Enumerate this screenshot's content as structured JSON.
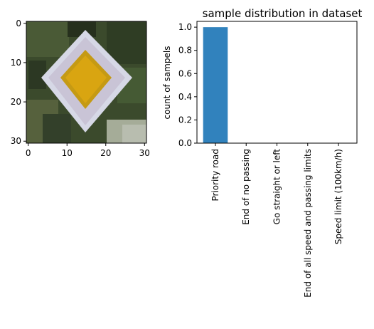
{
  "figure": {
    "left_panel": {
      "type": "image",
      "image_description": "31x31 pixel road sign image: a yellow diamond inside a white diamond border on a dark green foliage background",
      "x_ticks": [
        0,
        10,
        20,
        30
      ],
      "y_ticks": [
        0,
        10,
        20,
        30
      ],
      "xlim": [
        -0.5,
        30.5
      ],
      "ylim": [
        30.5,
        -0.5
      ]
    },
    "chart_data": {
      "type": "bar",
      "title": "sample distribution in dataset",
      "xlabel": "",
      "ylabel": "count of sampels",
      "categories": [
        "Priority road",
        "End of no passing",
        "Go straight or left",
        "End of all speed and passing limits",
        "Speed limit (100km/h)"
      ],
      "values": [
        1.0,
        0.0,
        0.0,
        0.0,
        0.0
      ],
      "ylim": [
        0,
        1.05
      ],
      "yticks": [
        "0.0",
        "0.2",
        "0.4",
        "0.6",
        "0.8",
        "1.0"
      ],
      "bar_color": "#3182bd",
      "grid": false
    }
  }
}
